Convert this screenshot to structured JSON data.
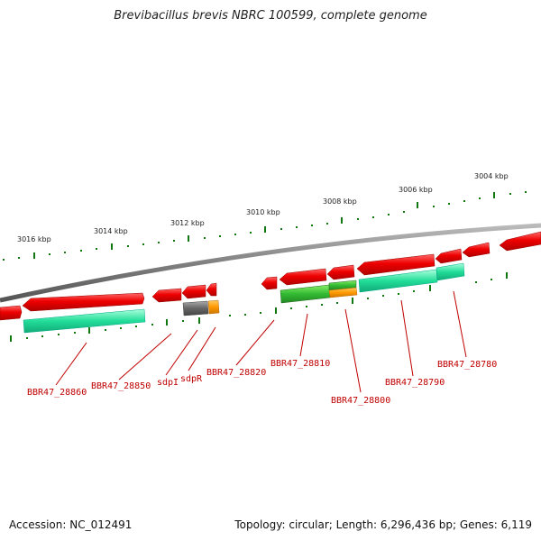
{
  "title": "Brevibacillus brevis NBRC 100599, complete genome",
  "footer": {
    "accession": "Accession: NC_012491",
    "summary": "Topology: circular; Length: 6,296,436 bp; Genes: 6,119"
  },
  "scale_labels": [
    "3016 kbp",
    "3014 kbp",
    "3012 kbp",
    "3010 kbp",
    "3008 kbp",
    "3006 kbp",
    "3004 kbp"
  ],
  "gene_labels": [
    "BBR47_28860",
    "BBR47_28850",
    "sdpI",
    "sdpR",
    "BBR47_28820",
    "BBR47_28810",
    "BBR47_28800",
    "BBR47_28790",
    "BBR47_28780"
  ],
  "colors": {
    "backbone": "#808080",
    "gene": "#ee0000",
    "cds_feature": "#22dd99",
    "green_feature": "#33bb33",
    "orange_feature": "#ff9900",
    "gray_feature": "#666666",
    "tick": "#117711",
    "label": "#c00000"
  }
}
